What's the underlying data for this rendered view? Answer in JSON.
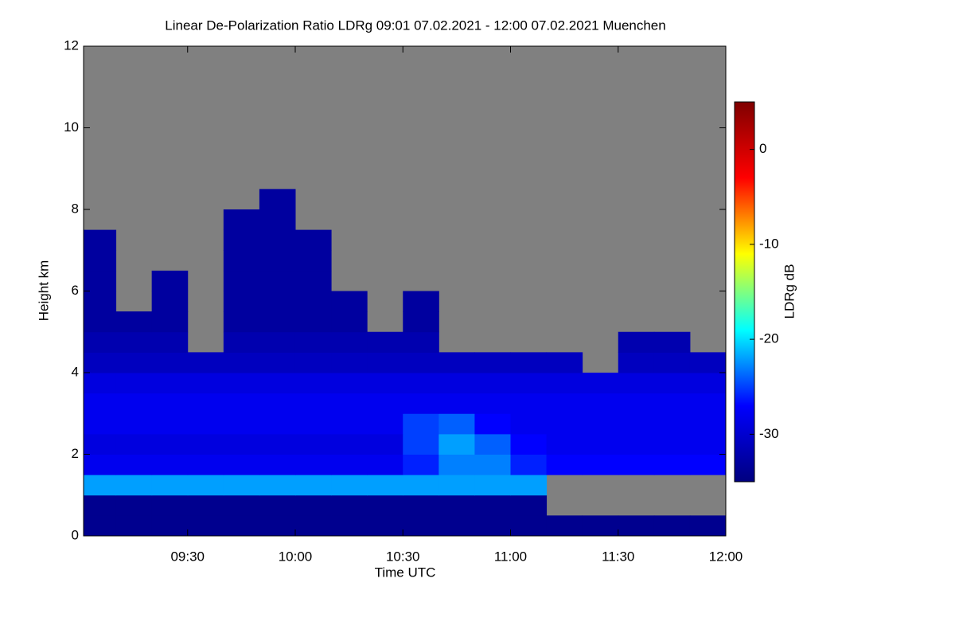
{
  "chart_data": {
    "type": "heatmap",
    "title": "Linear De-Polarization Ratio LDRg   09:01 07.02.2021 - 12:00 07.02.2021 Muenchen",
    "x_label": "Time UTC",
    "y_label": "Height km",
    "x_bins": [
      541,
      550,
      560,
      570,
      580,
      590,
      600,
      610,
      620,
      630,
      640,
      650,
      660,
      670,
      680,
      690,
      700,
      710,
      720
    ],
    "y_bins": [
      0,
      0.5,
      1,
      1.5,
      2,
      2.5,
      3,
      3.5,
      4,
      4.5,
      5,
      5.5,
      6,
      6.5,
      7,
      7.5,
      8,
      8.5
    ],
    "z": [
      [
        -34,
        -34,
        -34,
        -34,
        -34,
        -34,
        -34,
        -34,
        -34,
        -34,
        -34,
        -34,
        -34,
        -34,
        -34,
        -34,
        -34,
        -34
      ],
      [
        -34,
        -34,
        -34,
        -34,
        -34,
        -34,
        -34,
        -34,
        -34,
        -34,
        -34,
        -34,
        -34,
        null,
        null,
        null,
        null,
        null
      ],
      [
        -22,
        -22,
        -22,
        -22,
        -22,
        -22,
        -22,
        -22,
        -22,
        -22,
        -22,
        -22,
        -22,
        null,
        null,
        null,
        null,
        null
      ],
      [
        -28,
        -28,
        -28,
        -28,
        -28,
        -28,
        -28,
        -28,
        -28,
        -26,
        -23,
        -23,
        -26,
        -27,
        -27,
        -27,
        -27,
        -27
      ],
      [
        -29,
        -29,
        -29,
        -29,
        -29,
        -29,
        -29,
        -29,
        -29,
        -25,
        -22,
        -24,
        -27,
        -28,
        -28,
        -28,
        -28,
        -28
      ],
      [
        -28,
        -28,
        -28,
        -28,
        -28,
        -28,
        -28,
        -28,
        -28,
        -25,
        -24,
        -27,
        -28,
        -28,
        -28,
        -28,
        -28,
        -28
      ],
      [
        -28,
        -28,
        -28,
        -28,
        -28,
        -28,
        -28,
        -28,
        -28,
        -28,
        -28,
        -28,
        -28,
        -28,
        -28,
        -28,
        -28,
        -28
      ],
      [
        -29,
        -29,
        -29,
        -29,
        -29,
        -29,
        -29,
        -29,
        -29,
        -29,
        -29,
        -29,
        -29,
        -29,
        -29,
        -29,
        -29,
        -29
      ],
      [
        -31,
        -31,
        -31,
        -31,
        -31,
        -31,
        -31,
        -31,
        -31,
        -31,
        -31,
        -31,
        -31,
        -31,
        null,
        -31,
        -31,
        -31
      ],
      [
        -32,
        -32,
        -32,
        null,
        -32,
        -32,
        -32,
        -32,
        -32,
        -32,
        null,
        null,
        null,
        null,
        null,
        -32,
        -32,
        null
      ],
      [
        -33,
        -33,
        -33,
        null,
        -33,
        -33,
        -33,
        -33,
        null,
        -33,
        null,
        null,
        null,
        null,
        null,
        null,
        null,
        null
      ],
      [
        -33,
        null,
        -33,
        null,
        -33,
        -33,
        -33,
        -33,
        null,
        -33,
        null,
        null,
        null,
        null,
        null,
        null,
        null,
        null
      ],
      [
        -33,
        null,
        -33,
        null,
        -33,
        -33,
        -33,
        null,
        null,
        null,
        null,
        null,
        null,
        null,
        null,
        null,
        null,
        null
      ],
      [
        -33,
        null,
        null,
        null,
        -33,
        -33,
        -33,
        null,
        null,
        null,
        null,
        null,
        null,
        null,
        null,
        null,
        null,
        null
      ],
      [
        -33,
        null,
        null,
        null,
        -33,
        -33,
        -33,
        null,
        null,
        null,
        null,
        null,
        null,
        null,
        null,
        null,
        null,
        null
      ],
      [
        null,
        null,
        null,
        null,
        -33,
        -33,
        null,
        null,
        null,
        null,
        null,
        null,
        null,
        null,
        null,
        null,
        null,
        null
      ],
      [
        null,
        null,
        null,
        null,
        null,
        -33,
        null,
        null,
        null,
        null,
        null,
        null,
        null,
        null,
        null,
        null,
        null,
        null
      ]
    ],
    "xlim": [
      541,
      720
    ],
    "xticks": [
      {
        "value": 570,
        "label": "09:30"
      },
      {
        "value": 600,
        "label": "10:00"
      },
      {
        "value": 630,
        "label": "10:30"
      },
      {
        "value": 660,
        "label": "11:00"
      },
      {
        "value": 690,
        "label": "11:30"
      },
      {
        "value": 720,
        "label": "12:00"
      }
    ],
    "ylim": [
      0,
      12
    ],
    "yticks": [
      0,
      2,
      4,
      6,
      8,
      10,
      12
    ],
    "colorbar_label": "LDRg dB",
    "zlim": [
      -35,
      5
    ],
    "zticks": [
      0,
      -10,
      -20,
      -30
    ],
    "colorscale": [
      "#00007f",
      "#0000ff",
      "#00ffff",
      "#ffff00",
      "#ff0000",
      "#7f0000"
    ],
    "missing_color": "#808080"
  }
}
